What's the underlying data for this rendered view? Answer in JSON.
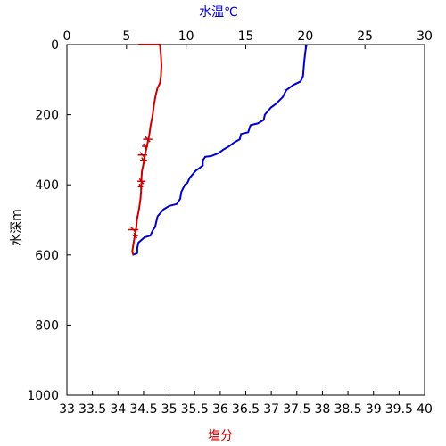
{
  "chart_data": {
    "type": "line",
    "top_axis": {
      "title": "水温℃",
      "title_color": "#0000cc",
      "range": [
        0,
        30
      ],
      "ticks": [
        "0",
        "5",
        "10",
        "15",
        "20",
        "25",
        "30"
      ]
    },
    "bottom_axis": {
      "title": "塩分",
      "title_color": "#cc0000",
      "range": [
        33,
        40
      ],
      "ticks": [
        "33",
        "33.5",
        "34",
        "34.5",
        "35",
        "35.5",
        "36",
        "36.5",
        "37",
        "37.5",
        "38",
        "38.5",
        "39",
        "39.5",
        "40"
      ]
    },
    "left_axis": {
      "title": "水深m",
      "range": [
        0,
        1000
      ],
      "inverted": true,
      "ticks": [
        "0",
        "200",
        "400",
        "600",
        "800",
        "1000"
      ]
    },
    "grid": false,
    "series": [
      {
        "axis": "top",
        "color": "#0000cc",
        "points": [
          [
            20.1,
            0
          ],
          [
            20.0,
            20
          ],
          [
            19.9,
            50
          ],
          [
            19.8,
            90
          ],
          [
            19.6,
            105
          ],
          [
            19.0,
            115
          ],
          [
            18.4,
            130
          ],
          [
            18.1,
            150
          ],
          [
            17.5,
            170
          ],
          [
            17.1,
            180
          ],
          [
            16.6,
            200
          ],
          [
            16.5,
            215
          ],
          [
            16.0,
            225
          ],
          [
            15.4,
            230
          ],
          [
            15.2,
            250
          ],
          [
            14.6,
            255
          ],
          [
            14.5,
            270
          ],
          [
            14.0,
            280
          ],
          [
            13.6,
            290
          ],
          [
            13.1,
            300
          ],
          [
            12.7,
            310
          ],
          [
            12.1,
            318
          ],
          [
            11.6,
            320
          ],
          [
            11.4,
            330
          ],
          [
            11.4,
            345
          ],
          [
            10.8,
            360
          ],
          [
            10.3,
            380
          ],
          [
            10.1,
            395
          ],
          [
            9.9,
            400
          ],
          [
            9.6,
            420
          ],
          [
            9.5,
            440
          ],
          [
            9.2,
            455
          ],
          [
            8.6,
            460
          ],
          [
            8.1,
            470
          ],
          [
            7.6,
            490
          ],
          [
            7.4,
            520
          ],
          [
            7.2,
            530
          ],
          [
            7.0,
            545
          ],
          [
            6.5,
            550
          ],
          [
            6.0,
            565
          ],
          [
            5.9,
            580
          ],
          [
            5.9,
            595
          ],
          [
            5.5,
            600
          ]
        ]
      },
      {
        "axis": "bottom",
        "color": "#cc0000",
        "points": [
          [
            34.4,
            0
          ],
          [
            34.82,
            0
          ],
          [
            34.84,
            30
          ],
          [
            34.85,
            60
          ],
          [
            34.84,
            90
          ],
          [
            34.82,
            110
          ],
          [
            34.77,
            125
          ],
          [
            34.73,
            150
          ],
          [
            34.7,
            175
          ],
          [
            34.68,
            200
          ],
          [
            34.64,
            230
          ],
          [
            34.61,
            260
          ],
          [
            34.58,
            280
          ],
          [
            34.55,
            300
          ],
          [
            34.52,
            320
          ],
          [
            34.5,
            340
          ],
          [
            34.47,
            360
          ],
          [
            34.46,
            380
          ],
          [
            34.46,
            395
          ],
          [
            34.45,
            420
          ],
          [
            34.44,
            440
          ],
          [
            34.41,
            470
          ],
          [
            34.37,
            500
          ],
          [
            34.36,
            520
          ],
          [
            34.33,
            545
          ],
          [
            34.3,
            570
          ],
          [
            34.28,
            590
          ],
          [
            34.3,
            600
          ]
        ],
        "spikes": [
          [
            34.58,
            270,
            0.18
          ],
          [
            34.53,
            290,
            0.12
          ],
          [
            34.48,
            315,
            0.18
          ],
          [
            34.5,
            330,
            0.14
          ],
          [
            34.46,
            390,
            0.16
          ],
          [
            34.44,
            405,
            0.1
          ],
          [
            34.3,
            528,
            0.2
          ],
          [
            34.34,
            545,
            0.1
          ]
        ]
      }
    ]
  }
}
